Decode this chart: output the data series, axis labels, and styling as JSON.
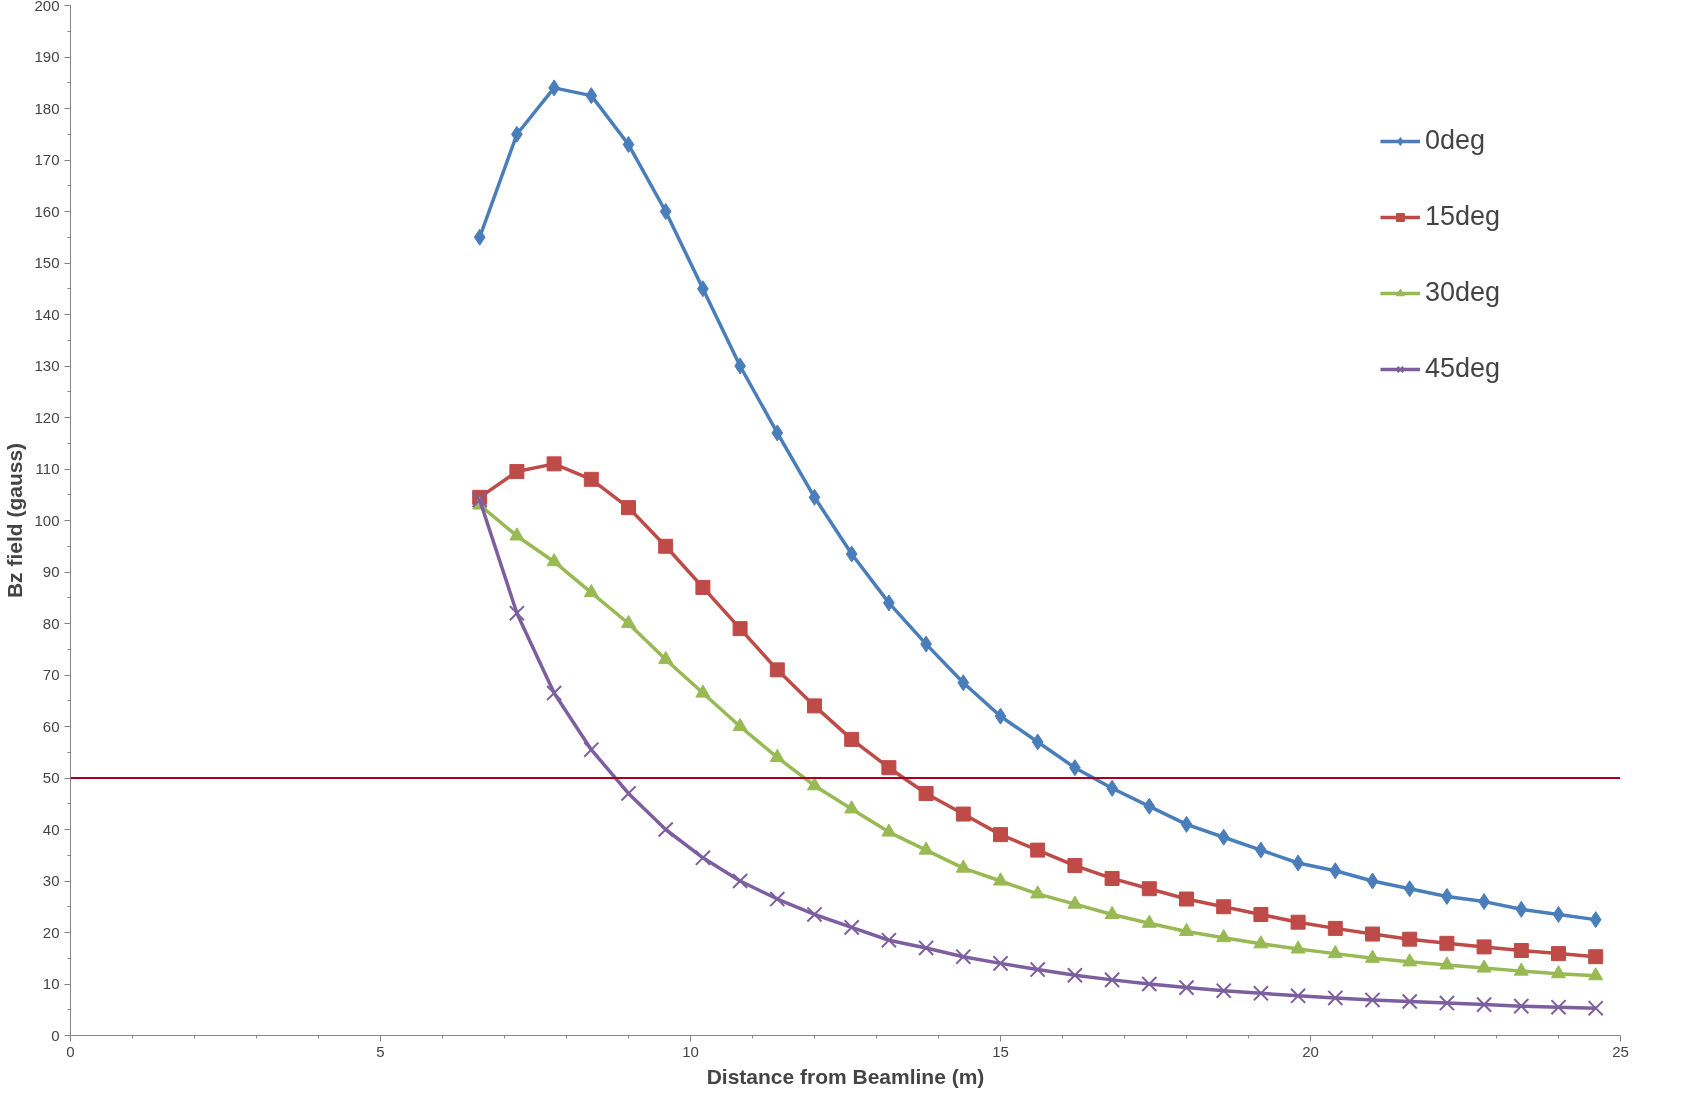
{
  "chart_data": {
    "type": "line",
    "xlabel": "Distance from Beamline (m)",
    "ylabel": "Bz field (gauss)",
    "x": [
      6.6,
      7.2,
      7.8,
      8.4,
      9.0,
      9.6,
      10.2,
      10.8,
      11.4,
      12.0,
      12.6,
      13.2,
      13.8,
      14.4,
      15.0,
      15.6,
      16.2,
      16.8,
      17.4,
      18.0,
      18.6,
      19.2,
      19.8,
      20.4,
      21.0,
      21.6,
      22.2,
      22.8,
      23.4,
      24.0,
      24.6
    ],
    "series": [
      {
        "name": "0deg",
        "color": "#4a7ebb",
        "marker": "diamond",
        "values": [
          155,
          175,
          184,
          182.5,
          173,
          160,
          145,
          130,
          117,
          104.5,
          93.5,
          84,
          76,
          68.5,
          62,
          57,
          52,
          48,
          44.5,
          41,
          38.5,
          36,
          33.5,
          32,
          30,
          28.5,
          27,
          26,
          24.5,
          23.5,
          22.5
        ]
      },
      {
        "name": "15deg",
        "color": "#be4b48",
        "marker": "square",
        "values": [
          104.5,
          109.5,
          111,
          108,
          102.5,
          95,
          87,
          79,
          71,
          64,
          57.5,
          52,
          47,
          43,
          39,
          36,
          33,
          30.5,
          28.5,
          26.5,
          25,
          23.5,
          22,
          20.8,
          19.7,
          18.7,
          17.9,
          17.2,
          16.5,
          15.9,
          15.3
        ]
      },
      {
        "name": "30deg",
        "color": "#98b954",
        "marker": "triangle",
        "values": [
          103,
          97,
          92,
          86,
          80,
          73,
          66.5,
          60,
          54,
          48.5,
          44,
          39.5,
          36,
          32.5,
          30,
          27.5,
          25.5,
          23.5,
          21.8,
          20.2,
          19,
          17.8,
          16.8,
          15.9,
          15,
          14.3,
          13.7,
          13.1,
          12.5,
          12,
          11.6
        ]
      },
      {
        "name": "45deg",
        "color": "#7d5fa0",
        "marker": "cross",
        "values": [
          104,
          82,
          66.5,
          55.5,
          47,
          40,
          34.5,
          30,
          26.5,
          23.5,
          21,
          18.5,
          17,
          15.3,
          14,
          12.8,
          11.7,
          10.8,
          10,
          9.3,
          8.7,
          8.2,
          7.7,
          7.3,
          6.9,
          6.6,
          6.3,
          6,
          5.7,
          5.5,
          5.3
        ]
      }
    ],
    "xlim": [
      0,
      25
    ],
    "xticks": [
      0,
      5,
      10,
      15,
      20,
      25
    ],
    "ylim": [
      0,
      200
    ],
    "yticks": [
      0,
      10,
      20,
      30,
      40,
      50,
      60,
      70,
      80,
      90,
      100,
      110,
      120,
      130,
      140,
      150,
      160,
      170,
      180,
      190,
      200
    ],
    "ref_lines": [
      {
        "axis": "y",
        "value": 50,
        "label": null,
        "color": "#a50021"
      }
    ],
    "grid": false,
    "legend": "top right"
  }
}
